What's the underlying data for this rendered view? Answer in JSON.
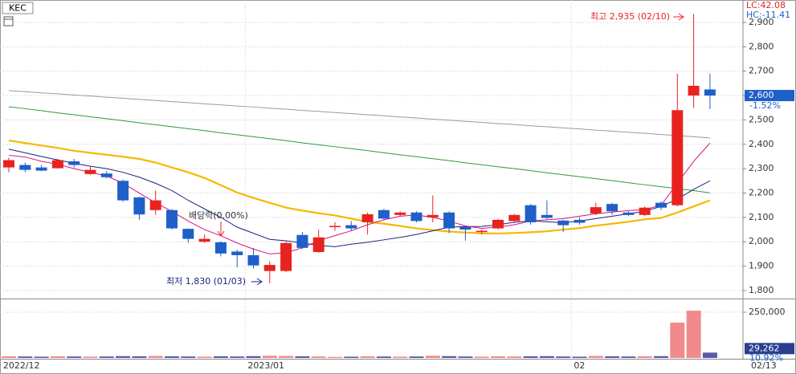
{
  "chart_data": {
    "type": "candlestick",
    "title": "KEC",
    "lc_label": "LC:42.08",
    "hc_label": "HC:-11.41",
    "categories": [
      "2022/12",
      null,
      null,
      null,
      null,
      null,
      null,
      null,
      null,
      null,
      null,
      null,
      null,
      null,
      null,
      "2023/01",
      null,
      null,
      null,
      null,
      null,
      null,
      null,
      null,
      null,
      null,
      null,
      null,
      null,
      null,
      null,
      null,
      null,
      null,
      null,
      "02",
      null,
      null,
      null,
      null,
      null,
      null,
      null,
      null
    ],
    "last_date_label": "02/13",
    "up_color": "#e8231f",
    "down_color": "#1f5fc8",
    "open": [
      2305,
      2315,
      2305,
      2302,
      2330,
      2278,
      2280,
      2250,
      2182,
      2130,
      2130,
      2053,
      2000,
      1998,
      1960,
      1945,
      1880,
      1880,
      2028,
      1958,
      2060,
      2068,
      2080,
      2130,
      2110,
      2120,
      2100,
      2120,
      2060,
      2040,
      2055,
      2085,
      2150,
      2110,
      2087,
      2090,
      2116,
      2155,
      2120,
      2110,
      2160,
      2150,
      2600,
      2625
    ],
    "high": [
      2345,
      2325,
      2315,
      2340,
      2340,
      2310,
      2290,
      2255,
      2185,
      2210,
      2135,
      2055,
      2030,
      2002,
      1968,
      1975,
      1920,
      2000,
      2040,
      2050,
      2080,
      2085,
      2120,
      2135,
      2125,
      2125,
      2190,
      2125,
      2065,
      2050,
      2095,
      2115,
      2155,
      2170,
      2090,
      2100,
      2160,
      2160,
      2125,
      2145,
      2165,
      2690,
      2935,
      2690
    ],
    "low": [
      2285,
      2285,
      2290,
      2300,
      2305,
      2275,
      2260,
      2165,
      2090,
      2110,
      2050,
      1995,
      1995,
      1940,
      1895,
      1890,
      1830,
      1875,
      1970,
      1955,
      2045,
      2045,
      2030,
      2090,
      2105,
      2080,
      2080,
      2035,
      2005,
      2030,
      2050,
      2080,
      2070,
      2090,
      2040,
      2070,
      2110,
      2110,
      2105,
      2105,
      2130,
      2145,
      2550,
      2545
    ],
    "close": [
      2335,
      2295,
      2292,
      2335,
      2315,
      2295,
      2265,
      2170,
      2112,
      2170,
      2055,
      2012,
      2012,
      1952,
      1945,
      1903,
      1905,
      1995,
      1975,
      2018,
      2065,
      2055,
      2113,
      2095,
      2120,
      2085,
      2110,
      2055,
      2050,
      2045,
      2090,
      2110,
      2080,
      2098,
      2068,
      2078,
      2142,
      2125,
      2110,
      2140,
      2140,
      2540,
      2640,
      2600
    ],
    "close_label": "2,600",
    "change_label": "-1.52%",
    "moving_averages": [
      {
        "color": "#9a9a9a",
        "width": 1,
        "values": [
          2620,
          2616,
          2611,
          2607,
          2602,
          2598,
          2593,
          2589,
          2584,
          2580,
          2575,
          2571,
          2566,
          2562,
          2557,
          2553,
          2548,
          2544,
          2539,
          2535,
          2530,
          2526,
          2521,
          2517,
          2512,
          2508,
          2503,
          2499,
          2494,
          2490,
          2485,
          2481,
          2476,
          2472,
          2467,
          2463,
          2458,
          2454,
          2449,
          2445,
          2440,
          2436,
          2431,
          2426
        ]
      },
      {
        "color": "#2e9a3e",
        "width": 1,
        "values": [
          2554,
          2546,
          2538,
          2529,
          2521,
          2513,
          2505,
          2497,
          2488,
          2480,
          2472,
          2464,
          2456,
          2447,
          2439,
          2431,
          2423,
          2415,
          2406,
          2398,
          2390,
          2382,
          2374,
          2365,
          2357,
          2349,
          2341,
          2333,
          2324,
          2316,
          2308,
          2300,
          2292,
          2283,
          2275,
          2267,
          2259,
          2251,
          2242,
          2234,
          2226,
          2218,
          2210,
          2201
        ]
      },
      {
        "color": "#f5b800",
        "width": 2.2,
        "values": [
          2416,
          2405,
          2395,
          2385,
          2373,
          2365,
          2357,
          2349,
          2340,
          2325,
          2305,
          2285,
          2262,
          2232,
          2202,
          2180,
          2160,
          2140,
          2128,
          2117,
          2108,
          2095,
          2082,
          2074,
          2065,
          2055,
          2048,
          2042,
          2038,
          2035,
          2034,
          2036,
          2039,
          2043,
          2050,
          2056,
          2066,
          2074,
          2082,
          2092,
          2098,
          2120,
          2145,
          2170
        ]
      },
      {
        "color": "#1a237e",
        "width": 1,
        "values": [
          2380,
          2365,
          2350,
          2336,
          2322,
          2310,
          2300,
          2285,
          2265,
          2240,
          2210,
          2170,
          2135,
          2100,
          2060,
          2035,
          2010,
          2004,
          1995,
          1985,
          1980,
          1990,
          1998,
          2008,
          2018,
          2030,
          2045,
          2060,
          2062,
          2063,
          2070,
          2080,
          2086,
          2082,
          2078,
          2085,
          2095,
          2105,
          2115,
          2125,
          2145,
          2175,
          2215,
          2250
        ]
      },
      {
        "color": "#d4127e",
        "width": 1,
        "values": [
          2355,
          2348,
          2330,
          2318,
          2300,
          2285,
          2270,
          2240,
          2200,
          2160,
          2125,
          2085,
          2050,
          2025,
          1995,
          1970,
          1950,
          1955,
          1975,
          2005,
          2025,
          2045,
          2070,
          2090,
          2105,
          2110,
          2100,
          2085,
          2065,
          2055,
          2060,
          2070,
          2085,
          2090,
          2095,
          2105,
          2115,
          2122,
          2128,
          2132,
          2150,
          2240,
          2330,
          2405
        ]
      }
    ],
    "ylim": [
      1767,
      2992
    ],
    "yticks": [
      {
        "value": 1800,
        "label": "1,800"
      },
      {
        "value": 1900,
        "label": "1,900"
      },
      {
        "value": 2000,
        "label": "2,000"
      },
      {
        "value": 2100,
        "label": "2,100"
      },
      {
        "value": 2200,
        "label": "2,200"
      },
      {
        "value": 2300,
        "label": "2,300"
      },
      {
        "value": 2400,
        "label": "2,400"
      },
      {
        "value": 2500,
        "label": "2,500"
      },
      {
        "value": 2600,
        "label": "2,600"
      },
      {
        "value": 2700,
        "label": "2,700"
      },
      {
        "value": 2800,
        "label": "2,800"
      },
      {
        "value": 2900,
        "label": "2,900"
      }
    ],
    "grid": true,
    "high_annotation": "최고 2,935 (02/10)",
    "low_annotation": "최저 1,830 (01/03)",
    "event_annotation": "배당락(0.00%)",
    "volume": {
      "up_color": "#f08a8c",
      "down_color": "#5a5aaa",
      "values": [
        9000,
        8000,
        7000,
        9000,
        8000,
        7000,
        8000,
        10000,
        9000,
        11000,
        9000,
        8000,
        7000,
        9000,
        8000,
        10000,
        12000,
        11000,
        9000,
        8000,
        6000,
        7000,
        9000,
        8000,
        7000,
        8000,
        12000,
        10000,
        8000,
        7000,
        9000,
        8000,
        9000,
        10000,
        8000,
        7000,
        11000,
        9000,
        8000,
        9000,
        10000,
        193000,
        258000,
        29262
      ],
      "ylim": [
        0,
        320000
      ],
      "yticks": [
        {
          "value": 250000,
          "label": "250,000"
        }
      ],
      "last_label": "29,262",
      "ratio_label": "10.92%"
    }
  }
}
